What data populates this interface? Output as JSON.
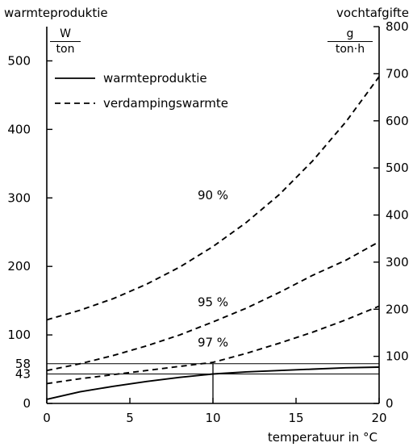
{
  "chart_data": {
    "type": "line",
    "xlabel": "temperatuur in °C",
    "xlim": [
      0,
      20
    ],
    "x_ticks": [
      "0",
      "5",
      "10",
      "15",
      "20"
    ],
    "left_axis": {
      "title": "warmteproduktie",
      "unit_num": "W",
      "unit_den": "ton",
      "ylim": [
        0,
        550
      ],
      "ticks": [
        "0",
        "100",
        "200",
        "300",
        "400",
        "500"
      ],
      "marked_values": [
        "43",
        "58"
      ]
    },
    "right_axis": {
      "title": "vochtafgifte",
      "unit_num": "g",
      "unit_den": "ton·h",
      "ylim": [
        0,
        800
      ],
      "ticks": [
        "0",
        "100",
        "200",
        "300",
        "400",
        "500",
        "600",
        "700",
        "800"
      ]
    },
    "legend": {
      "position": "top-left",
      "items": [
        {
          "label": "warmteproduktie",
          "style": "solid"
        },
        {
          "label": "verdampingswarmte",
          "style": "dashed"
        }
      ]
    },
    "series": [
      {
        "name": "warmteproduktie",
        "style": "solid",
        "axis": "left",
        "x": [
          0,
          2,
          4,
          6,
          8,
          10,
          12,
          14,
          16,
          18,
          20
        ],
        "y": [
          6,
          17,
          25,
          32,
          38,
          43,
          46,
          48,
          50,
          52,
          53
        ]
      },
      {
        "name": "90 %",
        "style": "dashed",
        "axis": "left",
        "x": [
          0,
          2,
          4,
          6,
          8,
          10,
          12,
          14,
          16,
          18,
          20
        ],
        "y": [
          122,
          136,
          153,
          174,
          199,
          229,
          264,
          305,
          354,
          411,
          477
        ]
      },
      {
        "name": "95 %",
        "style": "dashed",
        "axis": "left",
        "x": [
          0,
          2,
          4,
          6,
          8,
          10,
          12,
          14,
          16,
          18,
          20
        ],
        "y": [
          48,
          58,
          70,
          84,
          100,
          119,
          139,
          162,
          187,
          209,
          236
        ]
      },
      {
        "name": "97 %",
        "style": "dashed",
        "axis": "left",
        "x": [
          0,
          2,
          4,
          6,
          8,
          10,
          12,
          14,
          16,
          18,
          20
        ],
        "y": [
          29,
          36,
          42,
          48,
          54,
          60,
          73,
          88,
          104,
          122,
          142
        ]
      }
    ],
    "curve_labels": [
      {
        "text": "90 %",
        "x": 10.0,
        "y": 298
      },
      {
        "text": "95 %",
        "x": 10.0,
        "y": 142
      },
      {
        "text": "97 %",
        "x": 10.0,
        "y": 83
      }
    ],
    "reference_lines": [
      {
        "orientation": "horizontal",
        "axis": "left",
        "value": 58
      },
      {
        "orientation": "horizontal",
        "axis": "left",
        "value": 43
      },
      {
        "orientation": "vertical",
        "value": 10
      }
    ],
    "grid": false
  }
}
